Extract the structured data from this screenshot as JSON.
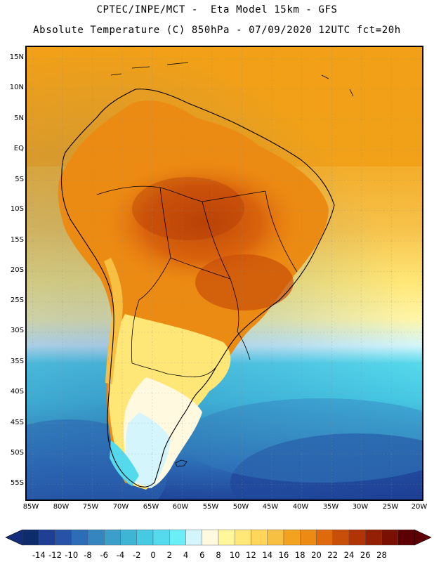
{
  "header": {
    "line1": "CPTEC/INPE/MCT -  Eta Model 15km - GFS",
    "line2": "Absolute Temperature (C) 850hPa - 07/09/2020 12UTC fct=20h"
  },
  "axes": {
    "lat_labels": [
      "15N",
      "10N",
      "5N",
      "EQ",
      "5S",
      "10S",
      "15S",
      "20S",
      "25S",
      "30S",
      "35S",
      "40S",
      "45S",
      "50S",
      "55S"
    ],
    "lon_labels": [
      "85W",
      "80W",
      "75W",
      "70W",
      "65W",
      "60W",
      "55W",
      "50W",
      "45W",
      "40W",
      "35W",
      "30W",
      "25W",
      "20W"
    ]
  },
  "legend": {
    "labels": [
      "-14",
      "-12",
      "-10",
      "-8",
      "-6",
      "-4",
      "-2",
      "0",
      "2",
      "4",
      "6",
      "8",
      "10",
      "12",
      "14",
      "16",
      "18",
      "20",
      "22",
      "24",
      "26",
      "28"
    ],
    "colors": [
      "#0e2b6b",
      "#1e3f94",
      "#2652a8",
      "#2d6cb7",
      "#3585c1",
      "#3b9fca",
      "#3fb5d6",
      "#46c9e3",
      "#55d9ec",
      "#6ceef7",
      "#d3f5fb",
      "#fff9e0",
      "#fff799",
      "#ffe877",
      "#ffd65a",
      "#f8c043",
      "#f2a21e",
      "#ec8b13",
      "#df6a0c",
      "#c94e08",
      "#b03406",
      "#931f05",
      "#7a1004",
      "#5c0006"
    ],
    "low_arrow_color": "#142d7a",
    "high_arrow_color": "#5c0006"
  },
  "palette": {
    "ocean_north": "#f0a318",
    "ocean_mid": "#fde68a",
    "ocean_south": "#3fc8e5",
    "ocean_far_south": "#2a6cb5",
    "continent_hot": "#d45a10"
  }
}
